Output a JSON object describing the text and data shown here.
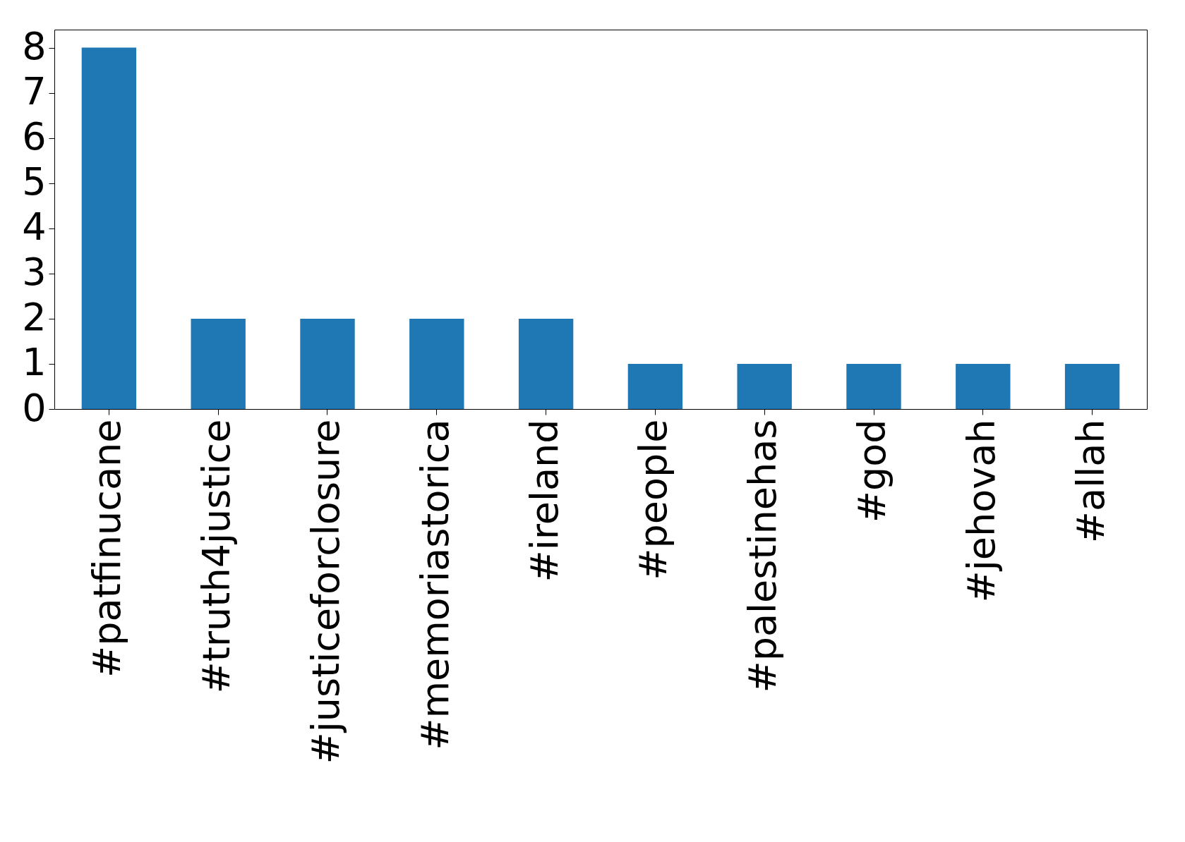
{
  "chart_data": {
    "type": "bar",
    "categories": [
      "#patfinucane",
      "#truth4justice",
      "#justiceforclosure",
      "#memoriastorica",
      "#ireland",
      "#people",
      "#palestinehas",
      "#god",
      "#jehovah",
      "#allah"
    ],
    "values": [
      8,
      2,
      2,
      2,
      2,
      1,
      1,
      1,
      1,
      1
    ],
    "color": "#1f77b4",
    "ylim": [
      0,
      8.4
    ],
    "yticks": [
      0,
      1,
      2,
      3,
      4,
      5,
      6,
      7,
      8
    ],
    "grid": false,
    "legend": false
  }
}
